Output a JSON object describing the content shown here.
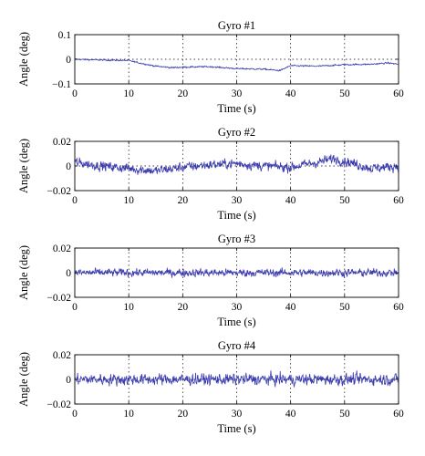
{
  "chart_data": [
    {
      "type": "line",
      "title": "Gyro #1",
      "xlabel": "Time (s)",
      "ylabel": "Angle (deg)",
      "xlim": [
        0,
        60
      ],
      "ylim": [
        -0.1,
        0.1
      ],
      "xticks": [
        0,
        10,
        20,
        30,
        40,
        50,
        60
      ],
      "yticks": [
        -0.1,
        0,
        0.1
      ],
      "ytick_labels": [
        "−0.1",
        "0",
        "0.1"
      ],
      "grid": "dotted",
      "color": "#3b3bb0",
      "series": [
        {
          "x": [
            0,
            5,
            10,
            12,
            15,
            18,
            20,
            25,
            30,
            35,
            38,
            40,
            45,
            50,
            55,
            58,
            60
          ],
          "values": [
            0.0,
            -0.003,
            -0.005,
            -0.015,
            -0.028,
            -0.034,
            -0.032,
            -0.03,
            -0.038,
            -0.04,
            -0.046,
            -0.026,
            -0.028,
            -0.022,
            -0.02,
            -0.015,
            -0.02
          ],
          "noise": 0.004
        }
      ]
    },
    {
      "type": "line",
      "title": "Gyro #2",
      "xlabel": "Time (s)",
      "ylabel": "Angle (deg)",
      "xlim": [
        0,
        60
      ],
      "ylim": [
        -0.02,
        0.02
      ],
      "xticks": [
        0,
        10,
        20,
        30,
        40,
        50,
        60
      ],
      "yticks": [
        -0.02,
        0,
        0.02
      ],
      "ytick_labels": [
        "−0.02",
        "0",
        "0.02"
      ],
      "grid": "dotted",
      "color": "#3b3bb0",
      "series": [
        {
          "x": [
            0,
            5,
            10,
            15,
            20,
            25,
            30,
            35,
            40,
            45,
            48,
            50,
            55,
            60
          ],
          "values": [
            0.003,
            0.0,
            -0.002,
            -0.004,
            -0.001,
            0.001,
            0.002,
            0.0,
            -0.001,
            0.003,
            0.006,
            0.004,
            -0.002,
            0.0
          ],
          "noise": 0.0055
        }
      ]
    },
    {
      "type": "line",
      "title": "Gyro #3",
      "xlabel": "Time (s)",
      "ylabel": "Angle (deg)",
      "xlim": [
        0,
        60
      ],
      "ylim": [
        -0.02,
        0.02
      ],
      "xticks": [
        0,
        10,
        20,
        30,
        40,
        50,
        60
      ],
      "yticks": [
        -0.02,
        0,
        0.02
      ],
      "ytick_labels": [
        "−0.02",
        "0",
        "0.02"
      ],
      "grid": "dotted",
      "color": "#3b3bb0",
      "series": [
        {
          "x": [
            0,
            10,
            20,
            30,
            40,
            50,
            60
          ],
          "values": [
            0,
            0,
            0,
            0,
            0,
            0,
            0
          ],
          "noise": 0.0045
        }
      ]
    },
    {
      "type": "line",
      "title": "Gyro #4",
      "xlabel": "Time (s)",
      "ylabel": "Angle (deg)",
      "xlim": [
        0,
        60
      ],
      "ylim": [
        -0.02,
        0.02
      ],
      "xticks": [
        0,
        10,
        20,
        30,
        40,
        50,
        60
      ],
      "yticks": [
        -0.02,
        0,
        0.02
      ],
      "ytick_labels": [
        "−0.02",
        "0",
        "0.02"
      ],
      "grid": "dotted",
      "color": "#3b3bb0",
      "series": [
        {
          "x": [
            0,
            10,
            20,
            30,
            40,
            50,
            60
          ],
          "values": [
            0,
            0,
            0,
            0,
            0,
            0,
            0
          ],
          "noise": 0.0065
        }
      ]
    }
  ]
}
